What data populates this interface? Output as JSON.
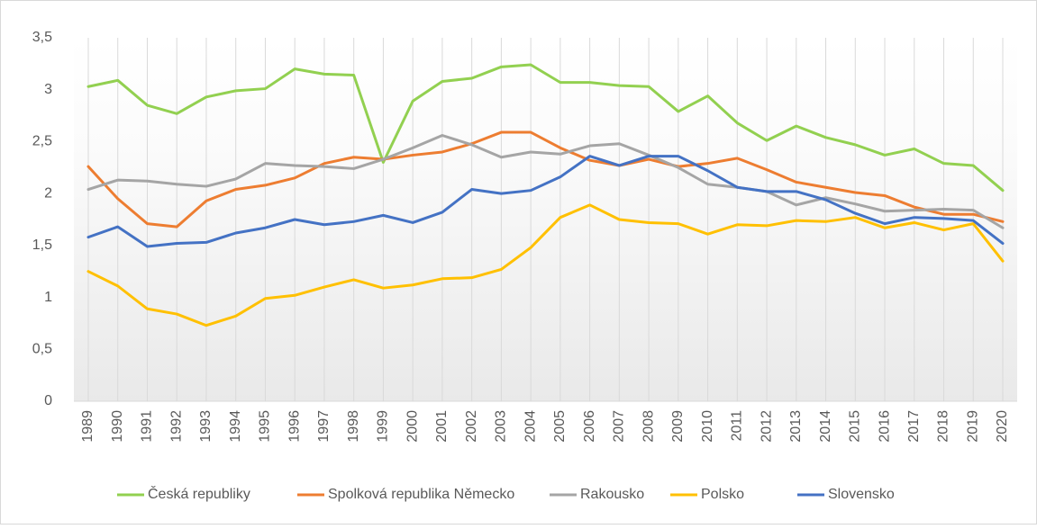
{
  "chart_data": {
    "type": "line",
    "categories": [
      "1989",
      "1990",
      "1991",
      "1992",
      "1993",
      "1994",
      "1995",
      "1996",
      "1997",
      "1998",
      "1999",
      "2000",
      "2001",
      "2002",
      "2003",
      "2004",
      "2005",
      "2006",
      "2007",
      "2008",
      "2009",
      "2010",
      "2011",
      "2012",
      "2013",
      "2014",
      "2015",
      "2016",
      "2017",
      "2018",
      "2019",
      "2020"
    ],
    "series": [
      {
        "name": "Česká republiky",
        "color": "#92d050",
        "values": [
          3.03,
          3.09,
          2.85,
          2.77,
          2.93,
          2.99,
          3.01,
          3.2,
          3.15,
          3.14,
          2.3,
          2.89,
          3.08,
          3.11,
          3.22,
          3.24,
          3.07,
          3.07,
          3.04,
          3.03,
          2.79,
          2.94,
          2.68,
          2.51,
          2.65,
          2.54,
          2.47,
          2.37,
          2.43,
          2.29,
          2.27,
          2.03
        ]
      },
      {
        "name": "Spolková republika Německo",
        "color": "#ed7d31",
        "values": [
          2.26,
          1.95,
          1.71,
          1.68,
          1.93,
          2.04,
          2.08,
          2.15,
          2.29,
          2.35,
          2.33,
          2.37,
          2.4,
          2.48,
          2.59,
          2.59,
          2.44,
          2.32,
          2.27,
          2.33,
          2.26,
          2.29,
          2.34,
          2.23,
          2.11,
          2.06,
          2.01,
          1.98,
          1.87,
          1.8,
          1.8,
          1.73
        ]
      },
      {
        "name": "Rakousko",
        "color": "#a5a5a5",
        "values": [
          2.04,
          2.13,
          2.12,
          2.09,
          2.07,
          2.14,
          2.29,
          2.27,
          2.26,
          2.24,
          2.33,
          2.44,
          2.56,
          2.47,
          2.35,
          2.4,
          2.38,
          2.46,
          2.48,
          2.37,
          2.25,
          2.09,
          2.06,
          2.02,
          1.89,
          1.96,
          1.9,
          1.83,
          1.84,
          1.85,
          1.84,
          1.67
        ]
      },
      {
        "name": "Polsko",
        "color": "#ffc000",
        "values": [
          1.25,
          1.11,
          0.89,
          0.84,
          0.73,
          0.82,
          0.99,
          1.02,
          1.1,
          1.17,
          1.09,
          1.12,
          1.18,
          1.19,
          1.27,
          1.48,
          1.77,
          1.89,
          1.75,
          1.72,
          1.71,
          1.61,
          1.7,
          1.69,
          1.74,
          1.73,
          1.77,
          1.67,
          1.72,
          1.65,
          1.71,
          1.35
        ]
      },
      {
        "name": "Slovensko",
        "color": "#4472c4",
        "values": [
          1.58,
          1.68,
          1.49,
          1.52,
          1.53,
          1.62,
          1.67,
          1.75,
          1.7,
          1.73,
          1.79,
          1.72,
          1.82,
          2.04,
          2.0,
          2.03,
          2.16,
          2.36,
          2.27,
          2.36,
          2.36,
          2.22,
          2.06,
          2.02,
          2.02,
          1.94,
          1.81,
          1.71,
          1.77,
          1.76,
          1.74,
          1.52
        ]
      }
    ],
    "ylim": [
      0,
      3.5
    ],
    "yticks": [
      0,
      {
        "value": 0.5,
        "label": "0,5"
      },
      1,
      {
        "value": 1.5,
        "label": "1,5"
      },
      2,
      {
        "value": 2.5,
        "label": "2,5"
      },
      3,
      {
        "value": 3.5,
        "label": "3,5"
      }
    ],
    "xgrid": true,
    "legend": "bottom"
  }
}
